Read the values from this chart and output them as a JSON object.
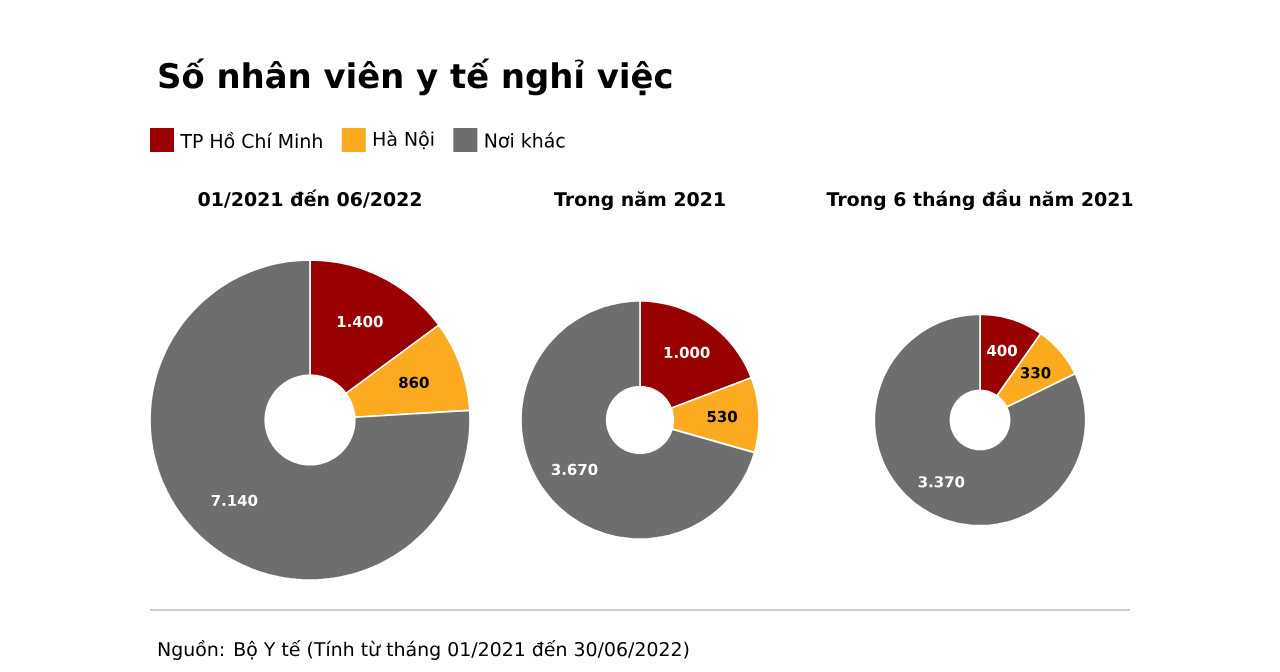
{
  "chart_data": [
    {
      "type": "donut",
      "title": "Số nhân viên y tế nghỉ việc",
      "subtitle": "01/2021 đến 06/2022",
      "categories": [
        "TP Hồ Chí Minh",
        "Hà Nội",
        "Nơi khác"
      ],
      "values": [
        1400,
        860,
        7140
      ],
      "value_labels": [
        "1.400",
        "860",
        "7.140"
      ],
      "colors": [
        "#990000",
        "#fcaa1f",
        "#6e6e6e"
      ],
      "legend": "top"
    },
    {
      "type": "donut",
      "title": "Trong năm 2021",
      "categories": [
        null,
        null,
        null
      ],
      "values": [
        1000,
        530,
        3670
      ],
      "value_labels": [
        "1.000",
        "530",
        "3.670"
      ],
      "colors": [
        "#990000",
        "#fcaa1f",
        "#6e6e6e"
      ]
    },
    {
      "type": "donut",
      "title": "Trong 6 tháng đầu năm 2021",
      "categories": [
        null,
        null,
        null
      ],
      "values": [
        400,
        330,
        3370
      ],
      "value_labels": [
        "400",
        "330",
        "3.370"
      ],
      "colors": [
        "#990000",
        "#fcaa1f",
        "#6e6e6e"
      ],
      "annotations": [
        "Nguồn: Bộ Y tế (Tính từ tháng 01/2021 đến 30/06/2022)"
      ]
    }
  ]
}
